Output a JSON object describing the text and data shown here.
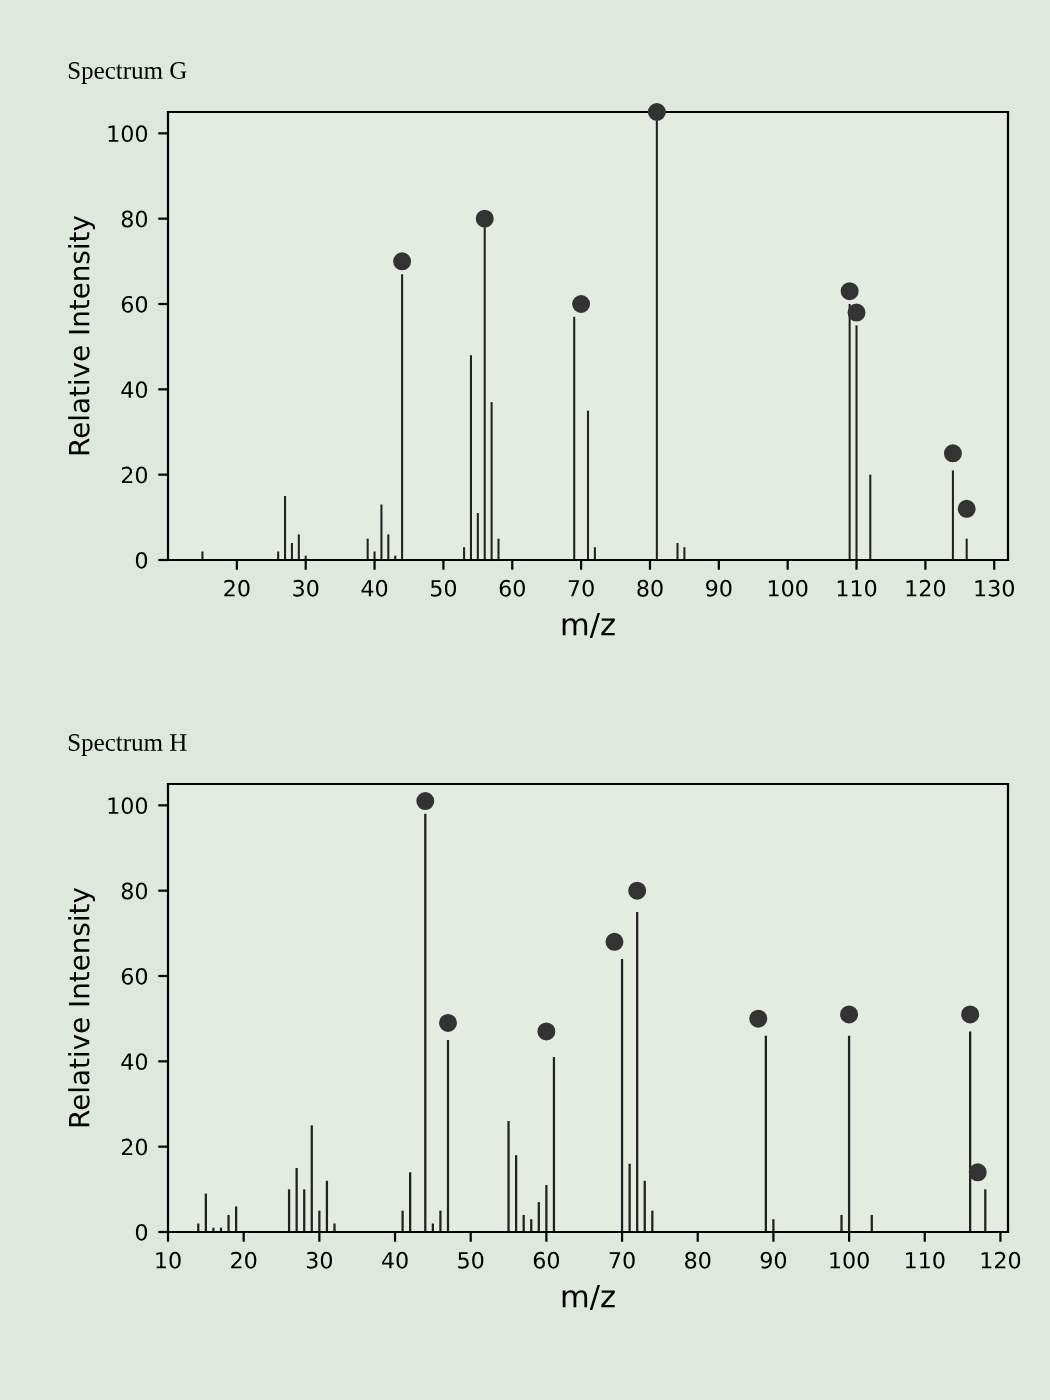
{
  "chart_data": [
    {
      "type": "bar",
      "title": "Spectrum G",
      "xlabel": "m/z",
      "ylabel": "Relative Intensity",
      "xlim": [
        10,
        132
      ],
      "xticks": [
        20,
        30,
        40,
        50,
        60,
        70,
        80,
        90,
        100,
        110,
        120,
        130
      ],
      "ylim": [
        0,
        105
      ],
      "yticks": [
        0,
        20,
        40,
        60,
        80,
        100
      ],
      "grid": false,
      "marker": "circle",
      "series": [
        {
          "color": "#222222",
          "x": [
            15,
            26,
            27,
            28,
            29,
            30,
            39,
            40,
            41,
            42,
            43,
            44,
            53,
            54,
            55,
            56,
            57,
            58,
            69,
            71,
            72,
            81,
            84,
            85,
            109,
            110,
            112,
            124,
            126
          ],
          "values": [
            2,
            2,
            15,
            4,
            6,
            1,
            5,
            2,
            13,
            6,
            1,
            67,
            3,
            48,
            11,
            78,
            37,
            5,
            57,
            35,
            3,
            103,
            4,
            3,
            60,
            55,
            20,
            21,
            5
          ]
        },
        {
          "type": "scatter",
          "color": "#333333",
          "x": [
            44,
            56,
            70,
            81,
            109,
            110,
            124,
            126
          ],
          "values": [
            70,
            80,
            60,
            105,
            63,
            58,
            25,
            12
          ]
        }
      ]
    },
    {
      "type": "bar",
      "title": "Spectrum H",
      "xlabel": "m/z",
      "ylabel": "Relative Intensity",
      "xlim": [
        10,
        121
      ],
      "xticks": [
        10,
        20,
        30,
        40,
        50,
        60,
        70,
        80,
        90,
        100,
        110,
        120
      ],
      "ylim": [
        0,
        105
      ],
      "yticks": [
        0,
        20,
        40,
        60,
        80,
        100
      ],
      "grid": false,
      "marker": "circle",
      "series": [
        {
          "color": "#222222",
          "x": [
            14,
            15,
            16,
            17,
            18,
            19,
            26,
            27,
            28,
            29,
            30,
            31,
            32,
            41,
            42,
            44,
            45,
            46,
            47,
            55,
            56,
            57,
            58,
            59,
            60,
            61,
            70,
            71,
            72,
            73,
            74,
            89,
            90,
            99,
            100,
            103,
            116,
            118
          ],
          "values": [
            2,
            9,
            1,
            1,
            4,
            6,
            10,
            15,
            10,
            25,
            5,
            12,
            2,
            5,
            14,
            98,
            2,
            5,
            45,
            26,
            18,
            4,
            3,
            7,
            11,
            41,
            64,
            16,
            75,
            12,
            5,
            46,
            3,
            4,
            46,
            4,
            47,
            10
          ]
        },
        {
          "type": "scatter",
          "color": "#333333",
          "x": [
            44,
            47,
            60,
            69,
            72,
            88,
            100,
            116,
            117
          ],
          "values": [
            101,
            49,
            47,
            68,
            80,
            50,
            51,
            51,
            14
          ]
        }
      ]
    }
  ]
}
